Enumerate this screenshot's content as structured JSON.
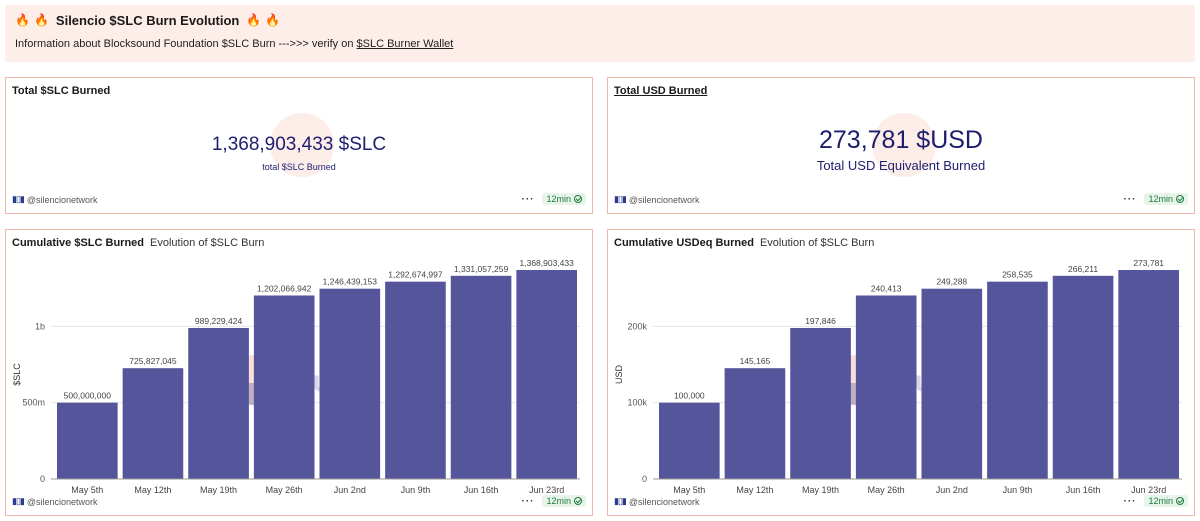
{
  "header": {
    "title": "Silencio $SLC Burn Evolution",
    "fire": "🔥",
    "info_text": "Information about Blocksound Foundation $SLC Burn --->>> verify on",
    "info_link": "$SLC Burner Wallet"
  },
  "panels": {
    "slc_counter": {
      "title": "Total $SLC Burned",
      "value": "1,368,903,433 $SLC",
      "label": "total $SLC Burned",
      "user": "@silencionetwork",
      "age": "12min"
    },
    "usd_counter": {
      "title": "Total USD Burned",
      "value": "273,781 $USD",
      "label": "Total USD Equivalent Burned",
      "user": "@silencionetwork",
      "age": "12min"
    },
    "slc_chart": {
      "title": "Cumulative $SLC Burned",
      "subtitle": "Evolution of $SLC Burn",
      "user": "@silencionetwork",
      "age": "12min"
    },
    "usd_chart": {
      "title": "Cumulative USDeq Burned",
      "subtitle": "Evolution of $SLC Burn",
      "user": "@silencionetwork",
      "age": "12min"
    }
  },
  "watermark": "Dune",
  "colors": {
    "bar": "#55559c",
    "accent": "#1e1e6e",
    "border": "#f0b8ab",
    "header_bg": "#fdeeea"
  },
  "chart_data": [
    {
      "type": "bar",
      "title": "Cumulative $SLC Burned",
      "ylabel": "$SLC",
      "xlabel": "",
      "categories": [
        "May 5th",
        "May 12th",
        "May 19th",
        "May 26th",
        "Jun 2nd",
        "Jun 9th",
        "Jun 16th",
        "Jun 23rd"
      ],
      "values": [
        500000000,
        725827045,
        989229424,
        1202066942,
        1246439153,
        1292674997,
        1331057259,
        1368903433
      ],
      "value_labels": [
        "500,000,000",
        "725,827,045",
        "989,229,424",
        "1,202,066,942",
        "1,246,439,153",
        "1,292,674,997",
        "1,331,057,259",
        "1,368,903,433"
      ],
      "yticks": [
        0,
        500000000,
        1000000000
      ],
      "ytick_labels": [
        "0",
        "500m",
        "1b"
      ],
      "ylim": [
        0,
        1500000000
      ],
      "grid": true
    },
    {
      "type": "bar",
      "title": "Cumulative USDeq Burned",
      "ylabel": "USD",
      "xlabel": "",
      "categories": [
        "May 5th",
        "May 12th",
        "May 19th",
        "May 26th",
        "Jun 2nd",
        "Jun 9th",
        "Jun 16th",
        "Jun 23rd"
      ],
      "values": [
        100000,
        145165,
        197846,
        240413,
        249288,
        258535,
        266211,
        273781
      ],
      "value_labels": [
        "100,000",
        "145,165",
        "197,846",
        "240,413",
        "249,288",
        "258,535",
        "266,211",
        "273,781"
      ],
      "yticks": [
        0,
        100000,
        200000
      ],
      "ytick_labels": [
        "0",
        "100k",
        "200k"
      ],
      "ylim": [
        0,
        300000
      ],
      "grid": true
    }
  ]
}
